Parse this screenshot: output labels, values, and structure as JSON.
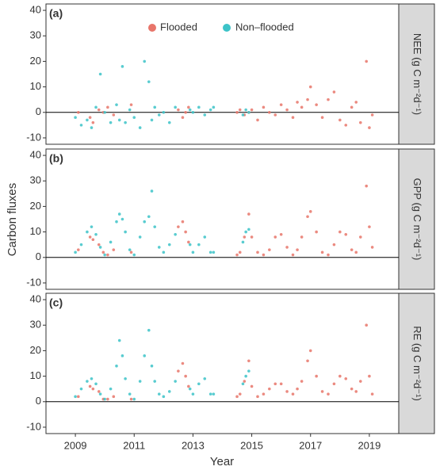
{
  "shared": {
    "xlabel": "Year",
    "ylabel": "Carbon fluxes"
  },
  "chart_data": [
    {
      "type": "scatter",
      "title": "(a)",
      "strip": "NEE (g C m⁻²d⁻¹)",
      "legend": "top-center",
      "xlim": [
        2008,
        2020
      ],
      "ylim": [
        -12.5,
        42.5
      ],
      "yticks": [
        -10,
        0,
        10,
        20,
        30,
        40
      ],
      "hline": 0,
      "series": [
        {
          "name": "Flooded",
          "color": "#e8756a",
          "x": [
            2009.1,
            2009.5,
            2009.6,
            2009.8,
            2009.95,
            2010.1,
            2010.3,
            2010.9,
            2012.5,
            2012.65,
            2012.75,
            2012.85,
            2014.5,
            2014.6,
            2014.75,
            2014.9,
            2015.0,
            2015.2,
            2015.4,
            2015.6,
            2015.8,
            2016.0,
            2016.2,
            2016.4,
            2016.55,
            2016.7,
            2016.9,
            2017.0,
            2017.2,
            2017.4,
            2017.6,
            2017.8,
            2018.0,
            2018.2,
            2018.4,
            2018.55,
            2018.7,
            2018.9,
            2019.0,
            2019.1
          ],
          "values": [
            0,
            -2,
            -4,
            1,
            0,
            2,
            -1,
            3,
            1,
            -2,
            0,
            2,
            0,
            1,
            -1,
            0,
            1,
            -3,
            2,
            0,
            -1,
            3,
            1,
            -2,
            4,
            2,
            5,
            10,
            3,
            -2,
            5,
            8,
            -3,
            -5,
            2,
            4,
            -4,
            20,
            -6,
            -1
          ]
        },
        {
          "name": "Non–flooded",
          "color": "#3cc3c8",
          "x": [
            2009.0,
            2009.2,
            2009.4,
            2009.55,
            2009.7,
            2009.85,
            2010.0,
            2010.2,
            2010.4,
            2010.5,
            2010.6,
            2010.7,
            2010.85,
            2011.0,
            2011.2,
            2011.35,
            2011.5,
            2011.6,
            2011.7,
            2011.85,
            2012.0,
            2012.2,
            2012.4,
            2012.9,
            2013.0,
            2013.2,
            2013.4,
            2013.6,
            2013.7,
            2014.7,
            2014.8,
            2014.9
          ],
          "values": [
            -2,
            -5,
            -3,
            -6,
            2,
            15,
            0,
            -4,
            3,
            -3,
            18,
            -4,
            1,
            -2,
            -6,
            20,
            12,
            -3,
            2,
            -1,
            0,
            -4,
            2,
            1,
            0,
            2,
            -1,
            1,
            2,
            -1,
            1,
            0
          ]
        }
      ]
    },
    {
      "type": "scatter",
      "title": "(b)",
      "strip": "GPP (g C m⁻²d⁻¹)",
      "xlim": [
        2008,
        2020
      ],
      "ylim": [
        -12.5,
        42.5
      ],
      "yticks": [
        -10,
        0,
        10,
        20,
        30,
        40
      ],
      "hline": 0,
      "series": [
        {
          "name": "Flooded",
          "color": "#e8756a",
          "x": [
            2009.1,
            2009.5,
            2009.6,
            2009.8,
            2009.95,
            2010.1,
            2010.3,
            2010.9,
            2012.5,
            2012.65,
            2012.75,
            2012.85,
            2014.5,
            2014.6,
            2014.75,
            2014.9,
            2015.0,
            2015.2,
            2015.4,
            2015.6,
            2015.8,
            2016.0,
            2016.2,
            2016.4,
            2016.55,
            2016.7,
            2016.9,
            2017.0,
            2017.2,
            2017.4,
            2017.6,
            2017.8,
            2018.0,
            2018.2,
            2018.4,
            2018.55,
            2018.7,
            2018.9,
            2019.0,
            2019.1
          ],
          "values": [
            3,
            8,
            7,
            5,
            2,
            1,
            3,
            2,
            12,
            14,
            10,
            6,
            1,
            2,
            8,
            17,
            8,
            2,
            1,
            3,
            8,
            9,
            4,
            1,
            3,
            8,
            16,
            18,
            10,
            2,
            1,
            5,
            10,
            9,
            3,
            2,
            8,
            28,
            12,
            4
          ]
        },
        {
          "name": "Non–flooded",
          "color": "#3cc3c8",
          "x": [
            2009.0,
            2009.2,
            2009.4,
            2009.55,
            2009.7,
            2009.85,
            2010.0,
            2010.2,
            2010.4,
            2010.5,
            2010.6,
            2010.7,
            2010.85,
            2011.0,
            2011.2,
            2011.35,
            2011.5,
            2011.6,
            2011.7,
            2011.85,
            2012.0,
            2012.2,
            2012.4,
            2012.9,
            2013.0,
            2013.2,
            2013.4,
            2013.6,
            2013.7,
            2014.7,
            2014.8,
            2014.9
          ],
          "values": [
            2,
            5,
            10,
            12,
            9,
            4,
            1,
            6,
            14,
            17,
            15,
            10,
            3,
            1,
            8,
            14,
            16,
            26,
            12,
            4,
            2,
            5,
            9,
            5,
            2,
            5,
            8,
            2,
            2,
            6,
            10,
            11
          ]
        }
      ]
    },
    {
      "type": "scatter",
      "title": "(c)",
      "strip": "RE (g C m⁻²d⁻¹)",
      "xlim": [
        2008,
        2020
      ],
      "ylim": [
        -12.5,
        42.5
      ],
      "yticks": [
        -10,
        0,
        10,
        20,
        30,
        40
      ],
      "hline": 0,
      "xticks": [
        2009,
        2011,
        2013,
        2015,
        2017,
        2019
      ],
      "series": [
        {
          "name": "Flooded",
          "color": "#e8756a",
          "x": [
            2009.1,
            2009.5,
            2009.6,
            2009.8,
            2009.95,
            2010.1,
            2010.3,
            2010.9,
            2012.5,
            2012.65,
            2012.75,
            2012.85,
            2014.5,
            2014.6,
            2014.75,
            2014.9,
            2015.0,
            2015.2,
            2015.4,
            2015.6,
            2015.8,
            2016.0,
            2016.2,
            2016.4,
            2016.55,
            2016.7,
            2016.9,
            2017.0,
            2017.2,
            2017.4,
            2017.6,
            2017.8,
            2018.0,
            2018.2,
            2018.4,
            2018.55,
            2018.7,
            2018.9,
            2019.0,
            2019.1
          ],
          "values": [
            2,
            6,
            5,
            4,
            1,
            1,
            2,
            1,
            12,
            15,
            10,
            6,
            2,
            3,
            8,
            16,
            6,
            2,
            3,
            5,
            7,
            7,
            4,
            3,
            5,
            8,
            16,
            20,
            10,
            4,
            3,
            7,
            10,
            9,
            5,
            4,
            8,
            30,
            10,
            3
          ]
        },
        {
          "name": "Non–flooded",
          "color": "#3cc3c8",
          "x": [
            2009.0,
            2009.2,
            2009.4,
            2009.55,
            2009.7,
            2009.85,
            2010.0,
            2010.2,
            2010.4,
            2010.5,
            2010.6,
            2010.7,
            2010.85,
            2011.0,
            2011.2,
            2011.35,
            2011.5,
            2011.6,
            2011.7,
            2011.85,
            2012.0,
            2012.2,
            2012.4,
            2012.9,
            2013.0,
            2013.2,
            2013.4,
            2013.6,
            2013.7,
            2014.7,
            2014.8,
            2014.9
          ],
          "values": [
            2,
            5,
            8,
            9,
            7,
            3,
            1,
            5,
            14,
            24,
            18,
            9,
            3,
            1,
            8,
            18,
            28,
            14,
            8,
            3,
            2,
            4,
            8,
            5,
            3,
            7,
            9,
            3,
            3,
            7,
            10,
            12
          ]
        }
      ]
    }
  ]
}
